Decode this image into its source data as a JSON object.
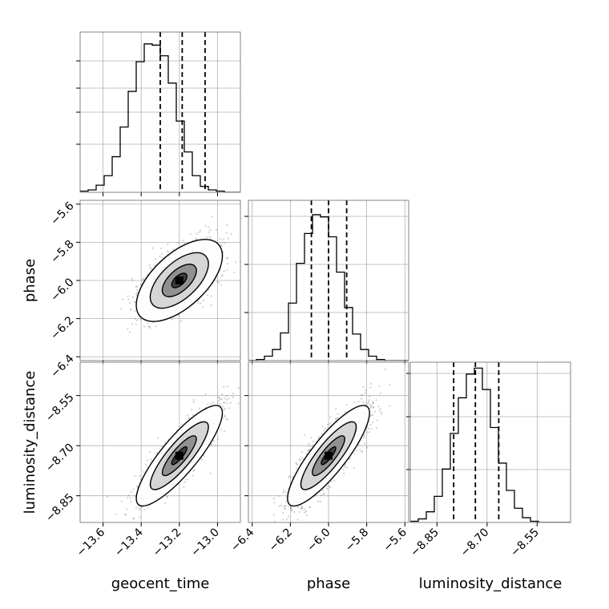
{
  "chart_data": {
    "type": "corner",
    "parameters": [
      "geocent_time",
      "phase",
      "luminosity_distance"
    ],
    "grid": true,
    "histograms": [
      {
        "parameter": "geocent_time",
        "range": [
          -13.72,
          -12.88
        ],
        "bin_edges": [
          -13.72,
          -13.678,
          -13.636,
          -13.594,
          -13.552,
          -13.51,
          -13.468,
          -13.426,
          -13.384,
          -13.342,
          -13.3,
          -13.258,
          -13.216,
          -13.174,
          -13.132,
          -13.09,
          -13.048,
          -13.006,
          -12.964,
          -12.922,
          -12.88
        ],
        "counts": [
          1,
          2,
          6,
          14,
          30,
          55,
          85,
          110,
          125,
          124,
          115,
          92,
          60,
          34,
          14,
          5,
          2,
          1,
          0,
          0
        ],
        "quantiles": [
          -13.3,
          -13.185,
          -13.065
        ],
        "grid_y": [
          0.3,
          0.5,
          0.65,
          0.82
        ],
        "ymax": 135
      },
      {
        "parameter": "phase",
        "range": [
          -6.42,
          -5.58
        ],
        "bin_edges": [
          -6.42,
          -6.378,
          -6.336,
          -6.294,
          -6.252,
          -6.21,
          -6.168,
          -6.126,
          -6.084,
          -6.042,
          -6.0,
          -5.958,
          -5.916,
          -5.874,
          -5.832,
          -5.79,
          -5.748,
          -5.706,
          -5.664,
          -5.622,
          -5.58
        ],
        "counts": [
          0,
          1,
          4,
          10,
          25,
          52,
          88,
          115,
          132,
          130,
          112,
          80,
          48,
          24,
          10,
          4,
          1,
          0,
          0,
          0
        ],
        "quantiles": [
          -6.09,
          -6.0,
          -5.905
        ],
        "grid_y": [
          0.3,
          0.6,
          0.9
        ],
        "ymax": 145
      },
      {
        "parameter": "luminosity_distance",
        "range": [
          -8.93,
          -8.45
        ],
        "bin_edges": [
          -8.93,
          -8.906,
          -8.882,
          -8.858,
          -8.834,
          -8.81,
          -8.786,
          -8.762,
          -8.738,
          -8.714,
          -8.69,
          -8.666,
          -8.642,
          -8.618,
          -8.594,
          -8.57,
          -8.546,
          -8.522,
          -8.498,
          -8.474,
          -8.45
        ],
        "counts": [
          1,
          3,
          9,
          22,
          45,
          75,
          105,
          125,
          130,
          112,
          80,
          50,
          27,
          12,
          4,
          1,
          0,
          0,
          0,
          0
        ],
        "quantiles": [
          -8.8,
          -8.735,
          -8.665
        ],
        "grid_y": [
          0.33,
          0.66,
          0.93
        ],
        "ymax": 135
      }
    ],
    "scatter_panels": [
      {
        "x_param": "geocent_time",
        "y_param": "phase",
        "xlim": [
          -13.72,
          -12.88
        ],
        "ylim": [
          -6.42,
          -5.58
        ],
        "mean": [
          -13.2,
          -6.0
        ],
        "std": [
          0.105,
          0.1
        ],
        "correlation": 0.6
      },
      {
        "x_param": "geocent_time",
        "y_param": "luminosity_distance",
        "xlim": [
          -13.72,
          -12.88
        ],
        "ylim": [
          -8.93,
          -8.45
        ],
        "mean": [
          -13.2,
          -8.73
        ],
        "std": [
          0.105,
          0.07
        ],
        "correlation": 0.85
      },
      {
        "x_param": "phase",
        "y_param": "luminosity_distance",
        "xlim": [
          -6.42,
          -5.58
        ],
        "ylim": [
          -8.93,
          -8.45
        ],
        "mean": [
          -6.0,
          -8.73
        ],
        "std": [
          0.1,
          0.07
        ],
        "correlation": 0.85
      }
    ],
    "axes": {
      "geocent_time": {
        "label": "geocent_time",
        "ticks": [
          -13.6,
          -13.4,
          -13.2,
          -13.0
        ],
        "tick_labels": [
          "−13.6",
          "−13.4",
          "−13.2",
          "−13.0"
        ]
      },
      "phase": {
        "label": "phase",
        "ticks": [
          -6.4,
          -6.2,
          -6.0,
          -5.8,
          -5.6
        ],
        "tick_labels": [
          "−6.4",
          "−6.2",
          "−6.0",
          "−5.8",
          "−5.6"
        ]
      },
      "luminosity_distance": {
        "label": "luminosity_distance",
        "ticks": [
          -8.85,
          -8.7,
          -8.55
        ],
        "tick_labels": [
          "−8.85",
          "−8.70",
          "−8.55"
        ]
      }
    }
  }
}
